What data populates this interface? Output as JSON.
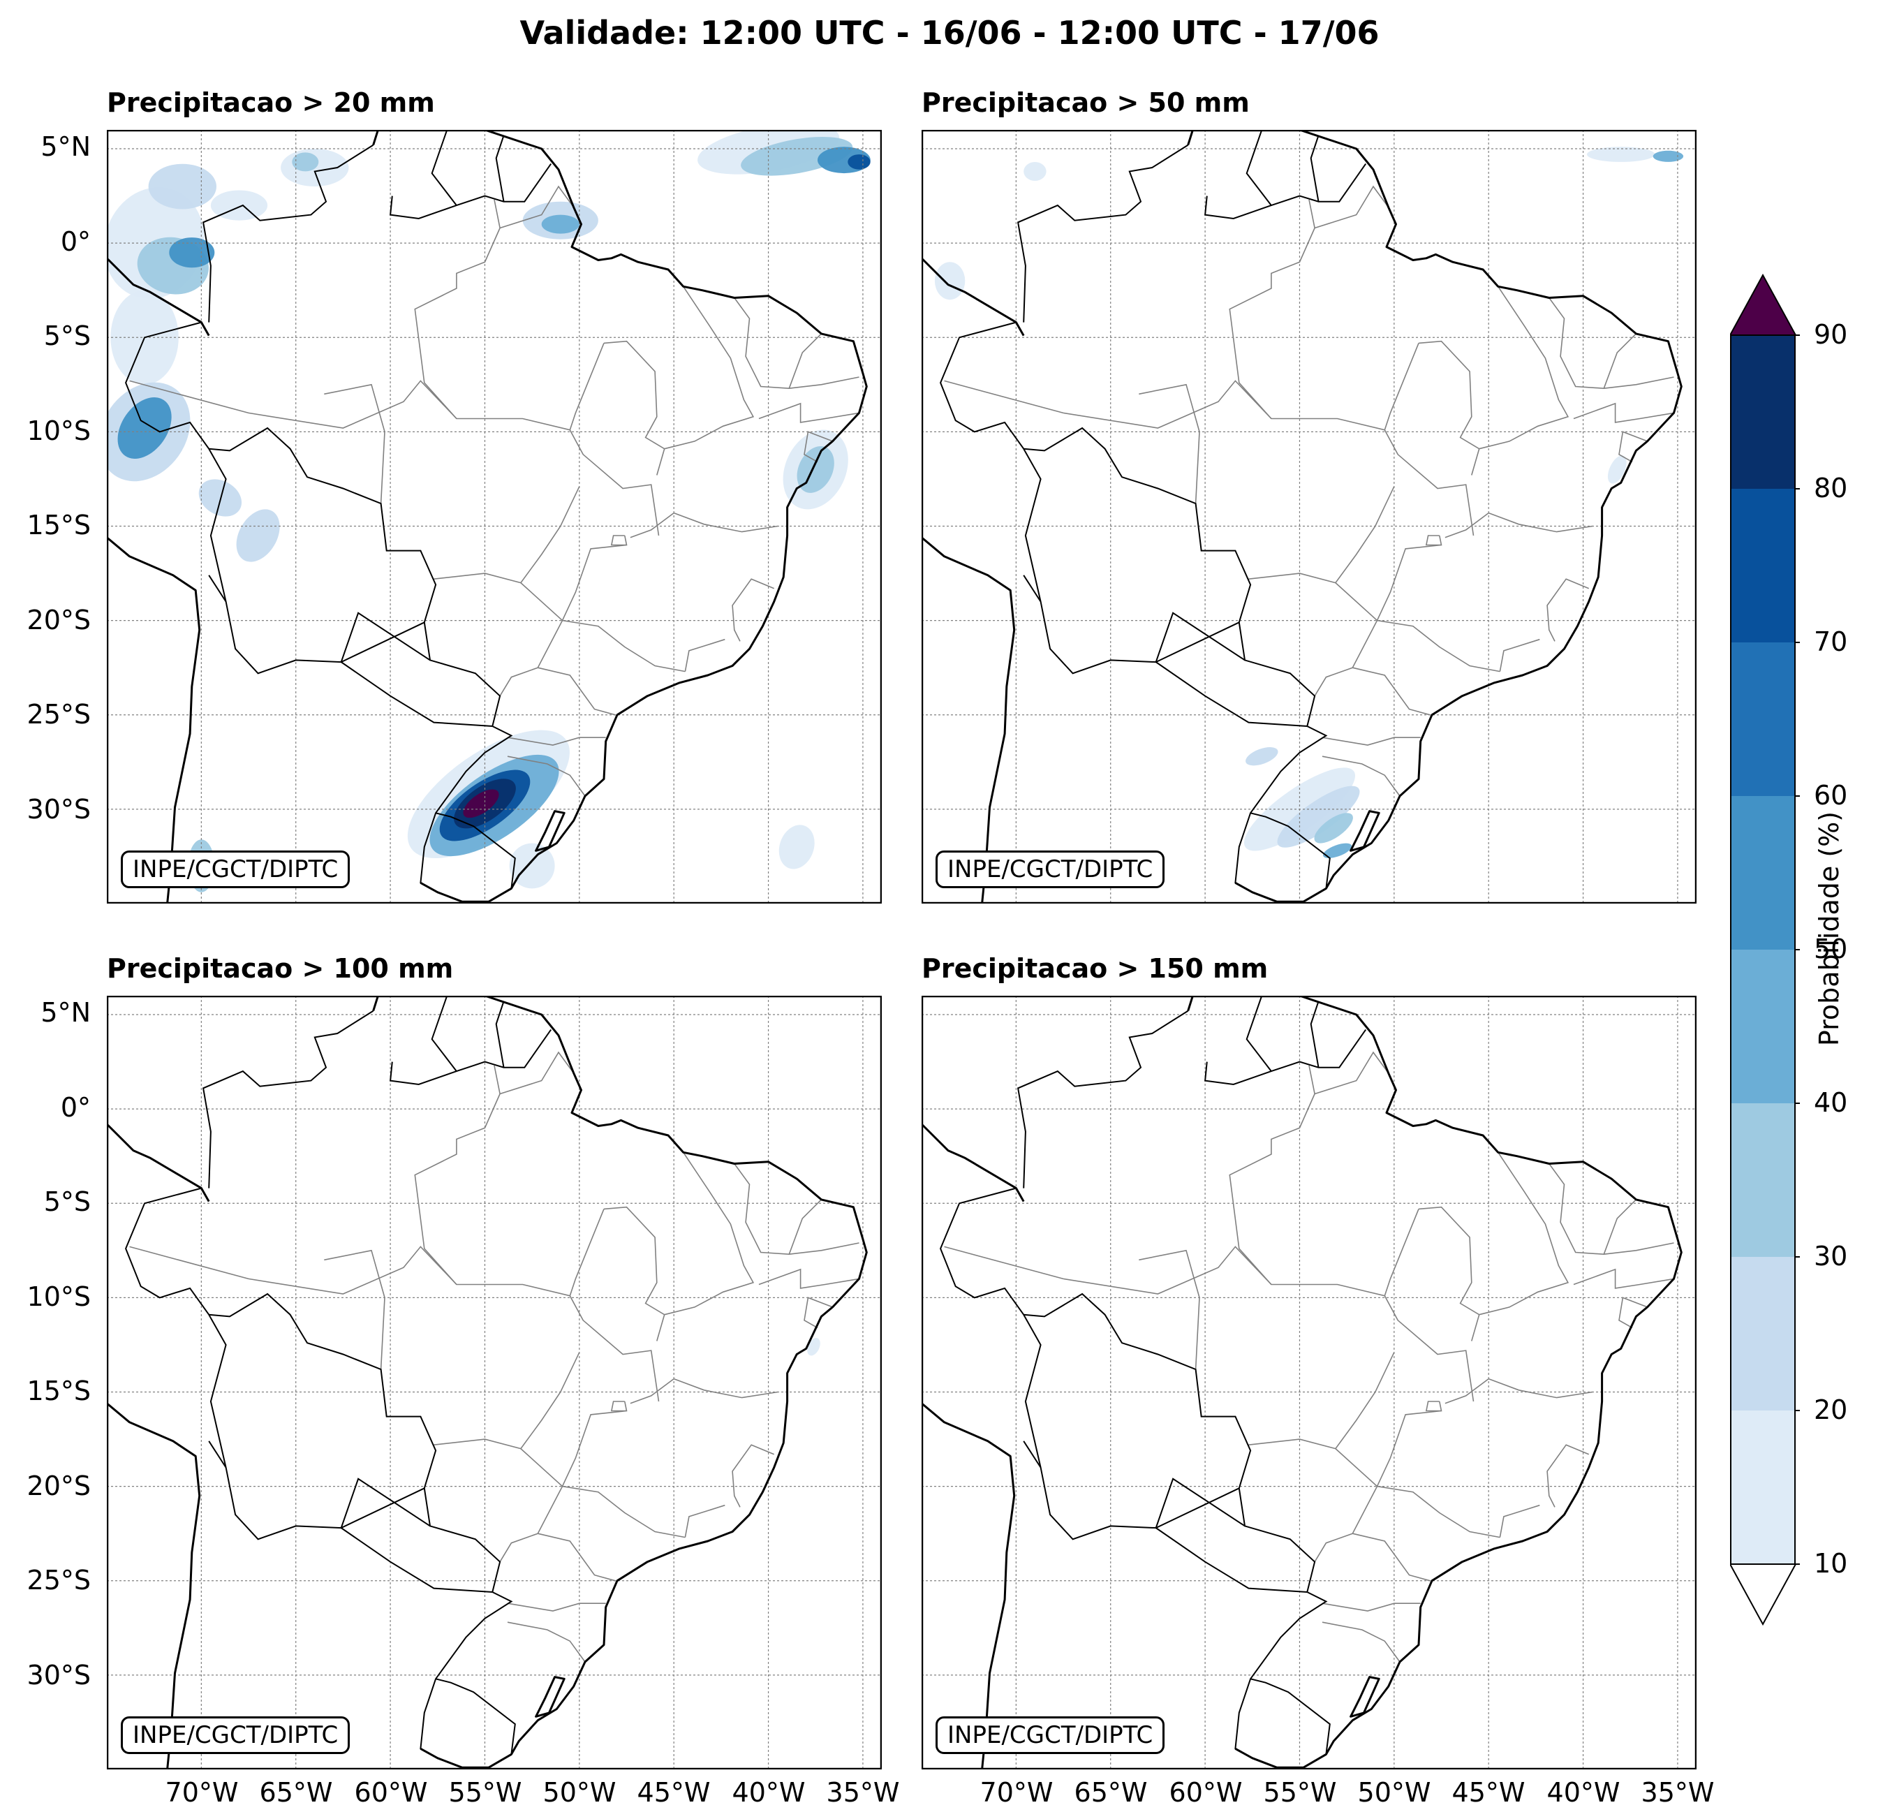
{
  "title": "Validade: 12:00 UTC - 16/06 - 12:00 UTC - 17/06",
  "credit": "INPE/CGCT/DIPTC",
  "panels": [
    {
      "title": "Precipitacao > 20 mm"
    },
    {
      "title": "Precipitacao > 50 mm"
    },
    {
      "title": "Precipitacao > 100 mm"
    },
    {
      "title": "Precipitacao > 150 mm"
    }
  ],
  "lat_labels": [
    "5°N",
    "0°",
    "5°S",
    "10°S",
    "15°S",
    "20°S",
    "25°S",
    "30°S"
  ],
  "lon_labels": [
    "70°W",
    "65°W",
    "60°W",
    "55°W",
    "50°W",
    "45°W",
    "40°W",
    "35°W"
  ],
  "extent": {
    "lon_min": -75,
    "lon_max": -34,
    "lat_min": -35,
    "lat_max": 6
  },
  "colorbar": {
    "label": "Probabilidade (%)",
    "ticks": [
      "10",
      "20",
      "30",
      "40",
      "50",
      "60",
      "70",
      "80",
      "90"
    ],
    "colors": [
      "#deebf7",
      "#c6dbef",
      "#9ecae1",
      "#6baed6",
      "#4292c6",
      "#2171b5",
      "#08519c",
      "#08306b"
    ],
    "over_color": "#4d0048",
    "under_color": "#ffffff"
  },
  "colors": {
    "coast": "#000000",
    "state_border": "#808080",
    "grid": "#808080"
  }
}
